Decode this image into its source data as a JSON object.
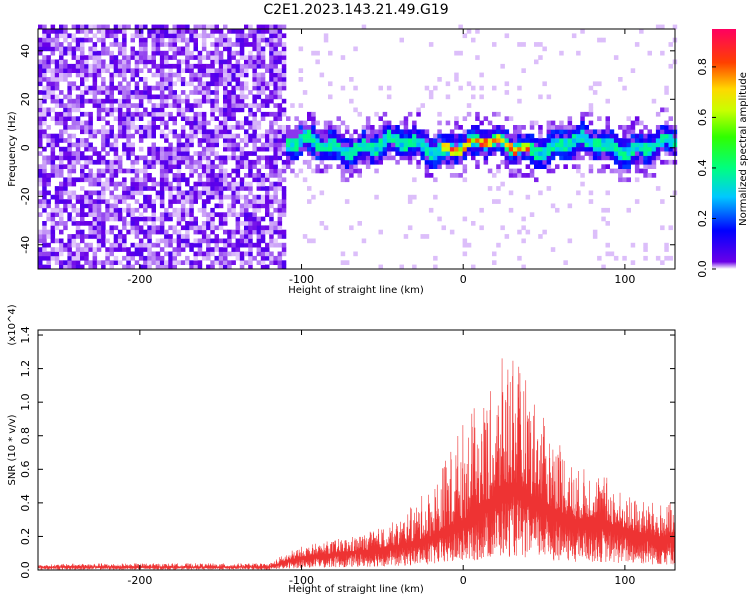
{
  "title": "C2E1.2023.143.21.49.G19",
  "colorbar_label": "Normalized spectral amplitude",
  "chart_data": [
    {
      "type": "heatmap",
      "xlabel": "Height of straight line (km)",
      "ylabel": "Frequency (Hz)",
      "xlim": [
        -263,
        131
      ],
      "ylim": [
        -50,
        49
      ],
      "x_ticks": [
        -200,
        -100,
        0,
        100
      ],
      "x_tick_labels": [
        "-200",
        "-100",
        "0",
        "100"
      ],
      "y_ticks": [
        -40,
        -20,
        0,
        20,
        40
      ],
      "y_tick_labels": [
        "-40",
        "-20",
        "0",
        "20",
        "40"
      ],
      "colorscale": "rainbow (purple low to red high)",
      "colorbar_range": [
        0,
        0.95
      ],
      "colorbar_ticks": [
        0.0,
        0.2,
        0.4,
        0.6,
        0.8
      ],
      "colorbar_tick_labels": [
        "0.0",
        "0.2",
        "0.4",
        "0.6",
        "0.8"
      ],
      "colors": {
        "noise": "#7a1ee6",
        "signal_core": "#19d0d0",
        "peak": "#e8101a"
      },
      "regions": [
        {
          "name": "broadband noise",
          "x": [
            -263,
            -112
          ],
          "freq": [
            -50,
            49
          ],
          "level": 0.15
        },
        {
          "name": "signal band",
          "x": [
            -112,
            131
          ],
          "freq": [
            -8,
            8
          ],
          "center_freq": 0,
          "level": 0.4
        },
        {
          "name": "peak",
          "x": [
            -15,
            40
          ],
          "center_freq": 1,
          "level": 0.95
        }
      ]
    },
    {
      "type": "line",
      "xlabel": "Height of straight line (km)",
      "ylabel": "SNR (10 * v/v)",
      "y_multiplier": "(x10^4)",
      "xlim": [
        -263,
        131
      ],
      "ylim": [
        0,
        1.43
      ],
      "x_ticks": [
        -200,
        -100,
        0,
        100
      ],
      "x_tick_labels": [
        "-200",
        "-100",
        "0",
        "100"
      ],
      "y_ticks": [
        0.0,
        0.2,
        0.4,
        0.6,
        0.8,
        1.0,
        1.2,
        1.4
      ],
      "y_tick_labels": [
        "0.0",
        "0.2",
        "0.4",
        "0.6",
        "0.8",
        "1.0",
        "1.2",
        "1.4"
      ],
      "color": "#ee3333",
      "envelope": {
        "x": [
          -263,
          -240,
          -200,
          -150,
          -120,
          -110,
          -100,
          -80,
          -60,
          -40,
          -20,
          -10,
          0,
          10,
          20,
          25,
          30,
          35,
          40,
          50,
          60,
          70,
          80,
          90,
          100,
          110,
          120,
          131
        ],
        "y_mean": [
          0.02,
          0.02,
          0.02,
          0.02,
          0.02,
          0.05,
          0.08,
          0.1,
          0.12,
          0.15,
          0.2,
          0.25,
          0.3,
          0.38,
          0.45,
          0.5,
          0.52,
          0.5,
          0.45,
          0.4,
          0.35,
          0.3,
          0.32,
          0.28,
          0.25,
          0.22,
          0.2,
          0.2
        ],
        "y_max": [
          0.03,
          0.04,
          0.04,
          0.04,
          0.04,
          0.1,
          0.14,
          0.18,
          0.22,
          0.3,
          0.5,
          0.7,
          0.9,
          1.0,
          1.1,
          1.3,
          1.43,
          1.2,
          1.15,
          0.9,
          0.8,
          0.6,
          0.62,
          0.55,
          0.45,
          0.42,
          0.4,
          0.4
        ]
      }
    }
  ]
}
